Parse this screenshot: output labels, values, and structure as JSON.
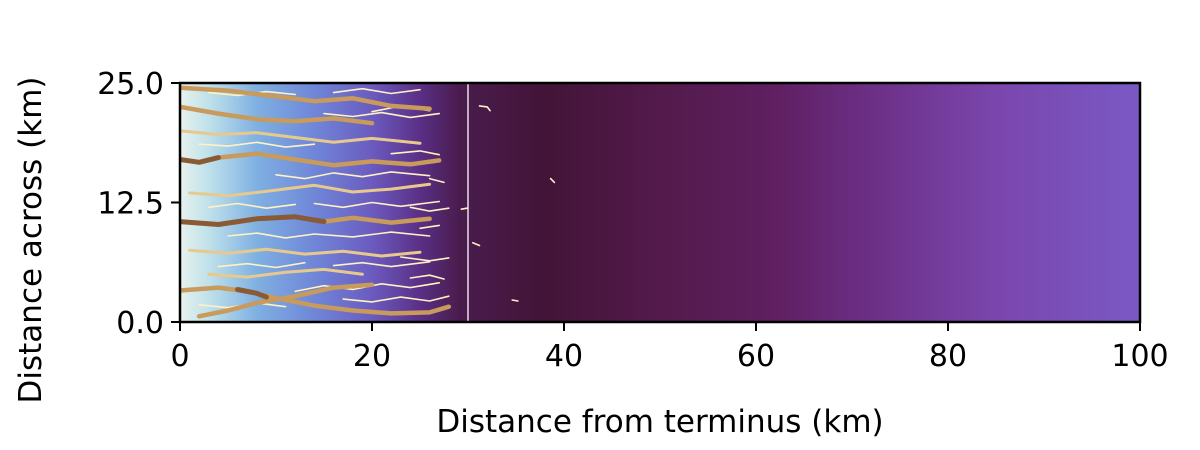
{
  "chart_data": {
    "type": "heatmap",
    "title": "",
    "xlabel": "Distance from terminus (km)",
    "ylabel": "Distance across (km)",
    "xlim": [
      0,
      100
    ],
    "ylim": [
      0,
      25
    ],
    "x_ticks": [
      "0",
      "20",
      "40",
      "60",
      "80",
      "100"
    ],
    "y_ticks": [
      "0.0",
      "12.5",
      "25.0"
    ],
    "x_tick_values": [
      0,
      20,
      40,
      60,
      80,
      100
    ],
    "y_tick_values": [
      0,
      12.5,
      25
    ],
    "colorbar": "none",
    "field_colors": {
      "stops": [
        {
          "x": 0,
          "color": "#e8f2ee"
        },
        {
          "x": 3,
          "color": "#bfe1ea"
        },
        {
          "x": 8,
          "color": "#7fb0e2"
        },
        {
          "x": 14,
          "color": "#6f86d8"
        },
        {
          "x": 20,
          "color": "#6b5bbf"
        },
        {
          "x": 25,
          "color": "#5a2f86"
        },
        {
          "x": 29,
          "color": "#4a1c4e"
        },
        {
          "x": 38,
          "color": "#421437"
        },
        {
          "x": 50,
          "color": "#531a4b"
        },
        {
          "x": 62,
          "color": "#5f1f61"
        },
        {
          "x": 72,
          "color": "#6c2f86"
        },
        {
          "x": 85,
          "color": "#7a46ad"
        },
        {
          "x": 100,
          "color": "#7a59c4"
        }
      ]
    },
    "marker_line": {
      "x": 30,
      "color": "#ffffff"
    },
    "channel_colors": {
      "major": "#c89a5c",
      "major_dark": "#8a5a34",
      "medium": "#e8c98d",
      "minor": "#fff1c4"
    },
    "channels": [
      {
        "cls": "major",
        "pts": [
          [
            0,
            22.5
          ],
          [
            4,
            21.8
          ],
          [
            8,
            21.2
          ],
          [
            12,
            21.0
          ],
          [
            16,
            21.3
          ],
          [
            20,
            20.8
          ]
        ]
      },
      {
        "cls": "major",
        "pts": [
          [
            0,
            24.5
          ],
          [
            5,
            24.2
          ],
          [
            10,
            23.6
          ],
          [
            14,
            23.1
          ],
          [
            18,
            23.4
          ],
          [
            22,
            22.6
          ],
          [
            26,
            22.3
          ]
        ]
      },
      {
        "cls": "major_dark",
        "pts": [
          [
            0,
            17.0
          ],
          [
            2,
            16.7
          ],
          [
            4,
            17.2
          ]
        ]
      },
      {
        "cls": "major",
        "pts": [
          [
            4,
            17.2
          ],
          [
            8,
            17.6
          ],
          [
            12,
            17.0
          ],
          [
            16,
            16.4
          ],
          [
            20,
            16.8
          ],
          [
            24,
            16.5
          ],
          [
            27,
            16.9
          ]
        ]
      },
      {
        "cls": "major_dark",
        "pts": [
          [
            0,
            10.5
          ],
          [
            4,
            10.2
          ],
          [
            8,
            10.8
          ],
          [
            12,
            11.0
          ],
          [
            15,
            10.5
          ]
        ]
      },
      {
        "cls": "major",
        "pts": [
          [
            15,
            10.5
          ],
          [
            18,
            10.9
          ],
          [
            22,
            10.4
          ],
          [
            26,
            10.8
          ]
        ]
      },
      {
        "cls": "major",
        "pts": [
          [
            0,
            3.3
          ],
          [
            4,
            3.6
          ],
          [
            7,
            3.2
          ],
          [
            10,
            2.5
          ],
          [
            14,
            1.7
          ],
          [
            18,
            1.2
          ],
          [
            22,
            0.9
          ],
          [
            26,
            1.0
          ],
          [
            28,
            1.6
          ]
        ]
      },
      {
        "cls": "major_dark",
        "pts": [
          [
            6,
            3.4
          ],
          [
            8,
            3.0
          ],
          [
            9,
            2.6
          ]
        ]
      },
      {
        "cls": "major",
        "pts": [
          [
            2,
            0.6
          ],
          [
            5,
            1.2
          ],
          [
            8,
            2.0
          ],
          [
            12,
            2.7
          ],
          [
            16,
            3.6
          ],
          [
            20,
            3.9
          ]
        ]
      },
      {
        "cls": "medium",
        "pts": [
          [
            0,
            20.0
          ],
          [
            4,
            19.6
          ],
          [
            8,
            19.8
          ],
          [
            12,
            19.3
          ],
          [
            16,
            18.8
          ],
          [
            20,
            19.2
          ],
          [
            25,
            18.7
          ]
        ]
      },
      {
        "cls": "medium",
        "pts": [
          [
            1,
            13.5
          ],
          [
            5,
            13.2
          ],
          [
            10,
            13.8
          ],
          [
            14,
            14.3
          ],
          [
            18,
            13.6
          ],
          [
            22,
            13.9
          ],
          [
            26,
            14.4
          ]
        ]
      },
      {
        "cls": "medium",
        "pts": [
          [
            1,
            7.5
          ],
          [
            5,
            7.2
          ],
          [
            9,
            7.6
          ],
          [
            13,
            7.1
          ],
          [
            17,
            7.4
          ],
          [
            21,
            6.9
          ],
          [
            25,
            7.3
          ]
        ]
      },
      {
        "cls": "medium",
        "pts": [
          [
            3,
            5.0
          ],
          [
            7,
            4.7
          ],
          [
            11,
            5.2
          ],
          [
            15,
            5.5
          ],
          [
            19,
            5.0
          ]
        ]
      },
      {
        "cls": "minor",
        "pts": [
          [
            3,
            24.0
          ],
          [
            6,
            23.7
          ],
          [
            9,
            24.1
          ],
          [
            12,
            23.8
          ]
        ]
      },
      {
        "cls": "minor",
        "pts": [
          [
            16,
            24.0
          ],
          [
            19,
            24.4
          ],
          [
            22,
            23.9
          ],
          [
            25,
            24.3
          ]
        ]
      },
      {
        "cls": "minor",
        "pts": [
          [
            2,
            18.6
          ],
          [
            5,
            18.4
          ],
          [
            8,
            18.8
          ],
          [
            11,
            18.3
          ],
          [
            14,
            18.6
          ]
        ]
      },
      {
        "cls": "minor",
        "pts": [
          [
            15,
            21.8
          ],
          [
            18,
            21.5
          ],
          [
            21,
            21.9
          ],
          [
            24,
            21.4
          ],
          [
            27,
            21.8
          ]
        ]
      },
      {
        "cls": "minor",
        "pts": [
          [
            10,
            15.4
          ],
          [
            13,
            15.0
          ],
          [
            16,
            15.6
          ],
          [
            19,
            15.2
          ],
          [
            22,
            15.7
          ],
          [
            26,
            15.3
          ]
        ]
      },
      {
        "cls": "minor",
        "pts": [
          [
            3,
            12.0
          ],
          [
            6,
            12.4
          ],
          [
            9,
            11.9
          ],
          [
            12,
            12.3
          ]
        ]
      },
      {
        "cls": "minor",
        "pts": [
          [
            14,
            12.4
          ],
          [
            17,
            12.0
          ],
          [
            20,
            12.5
          ],
          [
            23,
            12.1
          ],
          [
            27,
            12.6
          ]
        ]
      },
      {
        "cls": "minor",
        "pts": [
          [
            5,
            9.0
          ],
          [
            8,
            9.3
          ],
          [
            11,
            8.8
          ],
          [
            14,
            9.2
          ],
          [
            18,
            8.9
          ],
          [
            22,
            9.4
          ],
          [
            26,
            9.0
          ]
        ]
      },
      {
        "cls": "minor",
        "pts": [
          [
            4,
            5.8
          ],
          [
            7,
            6.1
          ],
          [
            10,
            5.7
          ],
          [
            13,
            6.2
          ]
        ]
      },
      {
        "cls": "minor",
        "pts": [
          [
            16,
            5.9
          ],
          [
            19,
            6.2
          ],
          [
            22,
            5.8
          ],
          [
            26,
            6.3
          ]
        ]
      },
      {
        "cls": "minor",
        "pts": [
          [
            12,
            3.2
          ],
          [
            15,
            3.8
          ],
          [
            18,
            3.4
          ],
          [
            21,
            4.0
          ],
          [
            24,
            3.6
          ],
          [
            27,
            4.1
          ]
        ]
      },
      {
        "cls": "minor",
        "pts": [
          [
            2,
            1.8
          ],
          [
            5,
            1.5
          ],
          [
            8,
            2.0
          ],
          [
            11,
            1.6
          ]
        ]
      },
      {
        "cls": "minor",
        "pts": [
          [
            17,
            2.4
          ],
          [
            20,
            2.1
          ],
          [
            23,
            2.6
          ],
          [
            26,
            2.2
          ],
          [
            28,
            2.7
          ]
        ]
      },
      {
        "cls": "minor",
        "pts": [
          [
            20,
            22.0
          ],
          [
            23,
            22.6
          ],
          [
            26,
            22.1
          ]
        ]
      },
      {
        "cls": "minor",
        "pts": [
          [
            22,
            17.6
          ],
          [
            25,
            17.9
          ],
          [
            27,
            17.5
          ]
        ]
      },
      {
        "cls": "minor",
        "pts": [
          [
            24,
            12.0
          ],
          [
            26,
            11.6
          ],
          [
            28,
            11.9
          ]
        ]
      },
      {
        "cls": "minor",
        "pts": [
          [
            23,
            6.8
          ],
          [
            26,
            6.4
          ],
          [
            28,
            6.7
          ]
        ]
      },
      {
        "cls": "minor",
        "pts": [
          [
            26,
            15.0
          ],
          [
            27.5,
            14.6
          ]
        ]
      },
      {
        "cls": "minor",
        "pts": [
          [
            25,
            9.8
          ],
          [
            27,
            10.1
          ]
        ]
      },
      {
        "cls": "minor",
        "pts": [
          [
            24,
            4.6
          ],
          [
            26,
            4.9
          ],
          [
            27.5,
            4.5
          ]
        ]
      },
      {
        "cls": "minor",
        "pts": [
          [
            31.2,
            22.6
          ],
          [
            32,
            22.5
          ],
          [
            32.3,
            22.1
          ]
        ]
      },
      {
        "cls": "minor",
        "pts": [
          [
            38.6,
            15.0
          ],
          [
            39.0,
            14.6
          ]
        ]
      },
      {
        "cls": "minor",
        "pts": [
          [
            30.5,
            8.3
          ],
          [
            31.2,
            8.0
          ]
        ]
      },
      {
        "cls": "minor",
        "pts": [
          [
            29.3,
            11.8
          ],
          [
            29.9,
            11.9
          ]
        ]
      },
      {
        "cls": "minor",
        "pts": [
          [
            34.6,
            2.3
          ],
          [
            35.2,
            2.2
          ]
        ]
      }
    ]
  }
}
